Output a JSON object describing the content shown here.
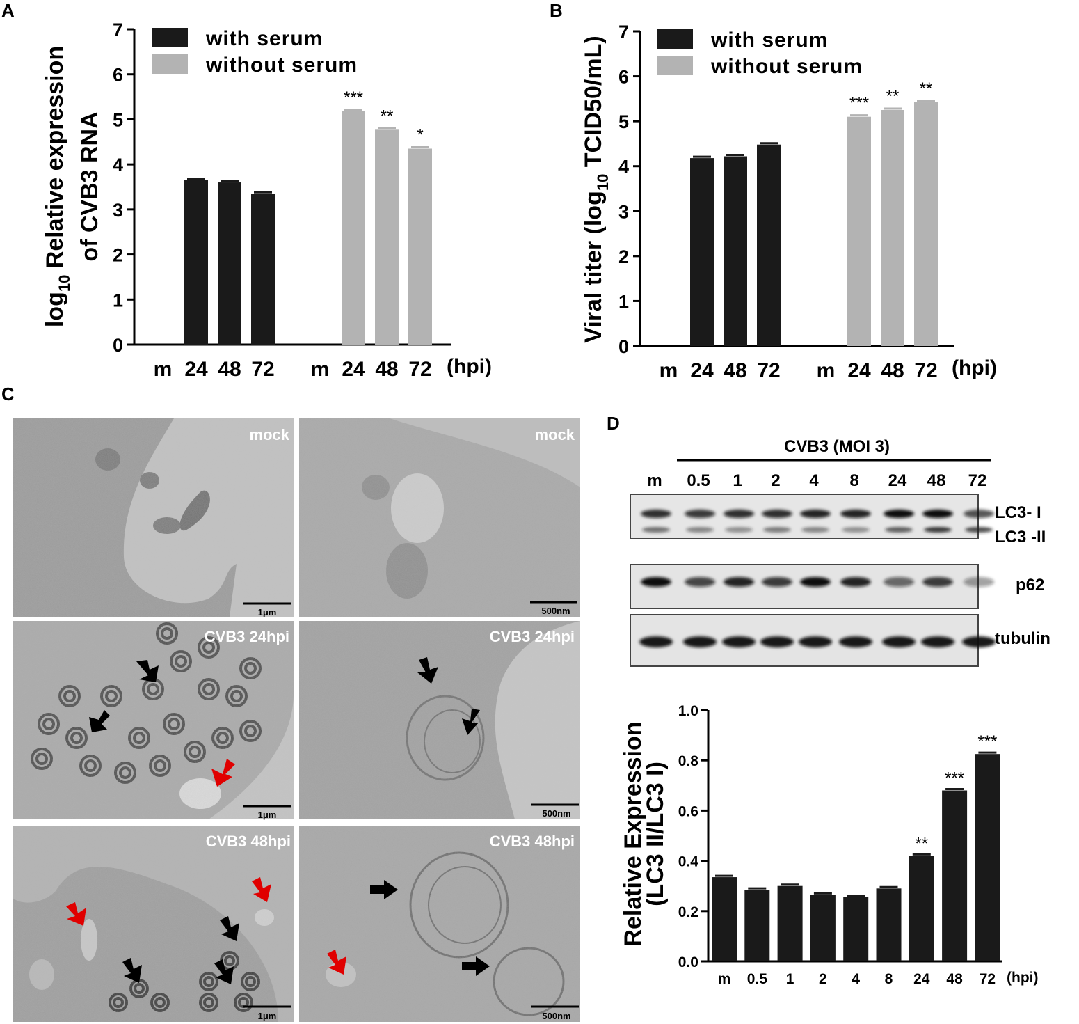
{
  "panels": {
    "A": "A",
    "B": "B",
    "C": "C",
    "D": "D"
  },
  "chart_data": [
    {
      "id": "A",
      "type": "bar",
      "ylabel_line1_main": "log",
      "ylabel_line1_sub": "10",
      "ylabel_line1_rest": " Relative expression",
      "ylabel_line2": "of CVB3 RNA",
      "ylim": [
        0,
        7
      ],
      "yticks": [
        "0",
        "1",
        "2",
        "3",
        "4",
        "5",
        "6",
        "7"
      ],
      "groups": [
        {
          "name": "with serum",
          "color": "#1a1a1a",
          "categories": [
            "m",
            "24",
            "48",
            "72"
          ],
          "values": [
            0,
            3.65,
            3.6,
            3.35
          ],
          "sig": [
            "",
            "",
            "",
            ""
          ]
        },
        {
          "name": "without serum",
          "color": "#b3b3b3",
          "categories": [
            "m",
            "24",
            "48",
            "72"
          ],
          "values": [
            0,
            5.18,
            4.77,
            4.35
          ],
          "sig": [
            "",
            "***",
            "**",
            "*"
          ]
        }
      ],
      "x_unit": "(hpi)",
      "legend": [
        "with serum",
        "without serum"
      ]
    },
    {
      "id": "B",
      "type": "bar",
      "ylabel_pre": "Viral titer (log",
      "ylabel_sub": "10",
      "ylabel_post": " TCID50/mL)",
      "ylim": [
        0,
        7
      ],
      "yticks": [
        "0",
        "1",
        "2",
        "3",
        "4",
        "5",
        "6",
        "7"
      ],
      "groups": [
        {
          "name": "with serum",
          "color": "#1a1a1a",
          "categories": [
            "m",
            "24",
            "48",
            "72"
          ],
          "values": [
            0,
            4.18,
            4.22,
            4.48
          ],
          "sig": [
            "",
            "",
            "",
            ""
          ]
        },
        {
          "name": "without serum",
          "color": "#b3b3b3",
          "categories": [
            "m",
            "24",
            "48",
            "72"
          ],
          "values": [
            0,
            5.1,
            5.25,
            5.42
          ],
          "sig": [
            "",
            "***",
            "**",
            "**"
          ]
        }
      ],
      "x_unit": "(hpi)",
      "legend": [
        "with serum",
        "without serum"
      ]
    },
    {
      "id": "D",
      "type": "bar",
      "ylabel1": "Relative  Expression",
      "ylabel2": "(LC3 II/LC3 I)",
      "ylim": [
        0,
        1.0
      ],
      "yticks": [
        "0.0",
        "0.2",
        "0.4",
        "0.6",
        "0.8",
        "1.0"
      ],
      "categories": [
        "m",
        "0.5",
        "1",
        "2",
        "4",
        "8",
        "24",
        "48",
        "72"
      ],
      "values": [
        0.335,
        0.285,
        0.3,
        0.265,
        0.255,
        0.29,
        0.42,
        0.68,
        0.825
      ],
      "sig": [
        "",
        "",
        "",
        "",
        "",
        "",
        "**",
        "***",
        "***"
      ],
      "x_unit": "(hpi)",
      "color": "#1a1a1a"
    }
  ],
  "micrographs": {
    "labels": [
      "mock",
      "mock",
      "CVB3 24hpi",
      "CVB3 24hpi",
      "CVB3 48hpi",
      "CVB3 48hpi"
    ],
    "scales": [
      "1μm",
      "500nm",
      "1μm",
      "500nm",
      "1μm",
      "500nm"
    ]
  },
  "western": {
    "title": "CVB3 (MOI 3)",
    "lanes": [
      "m",
      "0.5",
      "1",
      "2",
      "4",
      "8",
      "24",
      "48",
      "72"
    ],
    "rows": [
      "LC3- I",
      "LC3 -II",
      "p62",
      "tubulin"
    ]
  }
}
